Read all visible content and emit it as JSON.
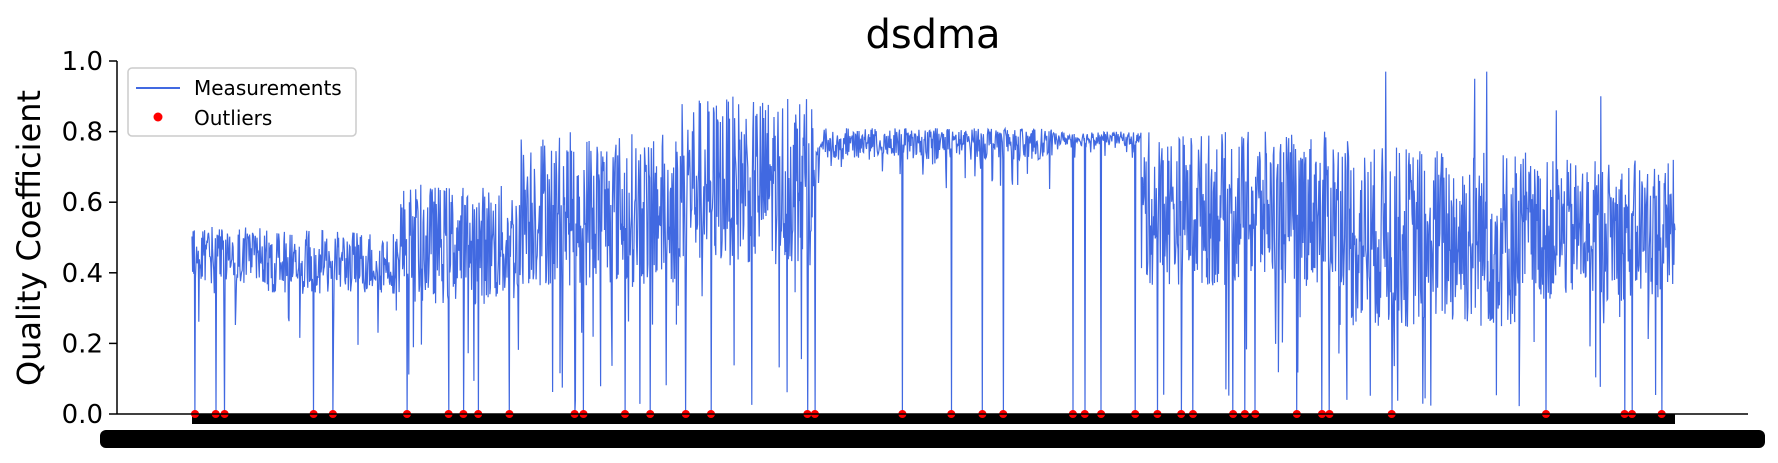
{
  "chart_data": {
    "type": "line",
    "title": "dsdma",
    "xlabel": "",
    "ylabel": "Quality Coefficient",
    "ylim": [
      0.0,
      1.0
    ],
    "y_ticks": [
      "0.0",
      "0.2",
      "0.4",
      "0.6",
      "0.8",
      "1.0"
    ],
    "grid": false,
    "legend_placement": "top-left",
    "x_tick_labels_overlapping": true,
    "series": [
      {
        "name": "Measurements",
        "kind": "line",
        "color": "#4169e1",
        "segments": [
          {
            "from": 0.0,
            "to": 0.05,
            "mean": 0.45,
            "spread": 0.08,
            "max": 0.68
          },
          {
            "from": 0.05,
            "to": 0.14,
            "mean": 0.43,
            "spread": 0.09,
            "max": 0.66
          },
          {
            "from": 0.14,
            "to": 0.22,
            "mean": 0.48,
            "spread": 0.17,
            "max": 0.78
          },
          {
            "from": 0.22,
            "to": 0.33,
            "mean": 0.58,
            "spread": 0.22,
            "max": 0.81
          },
          {
            "from": 0.33,
            "to": 0.42,
            "mean": 0.66,
            "spread": 0.24,
            "max": 0.9
          },
          {
            "from": 0.42,
            "to": 0.58,
            "mean": 0.77,
            "spread": 0.05,
            "max": 0.81
          },
          {
            "from": 0.58,
            "to": 0.64,
            "mean": 0.78,
            "spread": 0.02,
            "max": 0.8
          },
          {
            "from": 0.64,
            "to": 0.78,
            "mean": 0.58,
            "spread": 0.22,
            "max": 0.82
          },
          {
            "from": 0.78,
            "to": 0.9,
            "mean": 0.5,
            "spread": 0.26,
            "max": 0.97
          },
          {
            "from": 0.9,
            "to": 1.0,
            "mean": 0.52,
            "spread": 0.2,
            "max": 0.9
          }
        ],
        "spikes": [
          {
            "x": 0.805,
            "y": 0.97
          },
          {
            "x": 0.865,
            "y": 0.95
          },
          {
            "x": 0.873,
            "y": 0.97
          },
          {
            "x": 0.95,
            "y": 0.9
          },
          {
            "x": 0.92,
            "y": 0.86
          },
          {
            "x": 0.35,
            "y": 0.91
          },
          {
            "x": 0.7,
            "y": 0.63
          }
        ]
      },
      {
        "name": "Outliers",
        "kind": "points",
        "color": "#ff0000",
        "x": [
          0.002,
          0.016,
          0.022,
          0.082,
          0.095,
          0.145,
          0.173,
          0.183,
          0.193,
          0.214,
          0.258,
          0.264,
          0.292,
          0.309,
          0.333,
          0.35,
          0.415,
          0.42,
          0.479,
          0.512,
          0.533,
          0.547,
          0.594,
          0.602,
          0.613,
          0.636,
          0.651,
          0.667,
          0.675,
          0.702,
          0.71,
          0.717,
          0.745,
          0.762,
          0.767,
          0.809,
          0.913,
          0.966,
          0.971,
          0.991
        ],
        "y": [
          0.0,
          0.0,
          0.0,
          0.0,
          0.0,
          0.0,
          0.0,
          0.0,
          0.0,
          0.0,
          0.0,
          0.0,
          0.0,
          0.0,
          0.0,
          0.0,
          0.0,
          0.0,
          0.0,
          0.0,
          0.0,
          0.0,
          0.0,
          0.0,
          0.0,
          0.0,
          0.0,
          0.0,
          0.0,
          0.0,
          0.0,
          0.0,
          0.0,
          0.0,
          0.0,
          0.0,
          0.0,
          0.0,
          0.0,
          0.0
        ]
      }
    ]
  }
}
